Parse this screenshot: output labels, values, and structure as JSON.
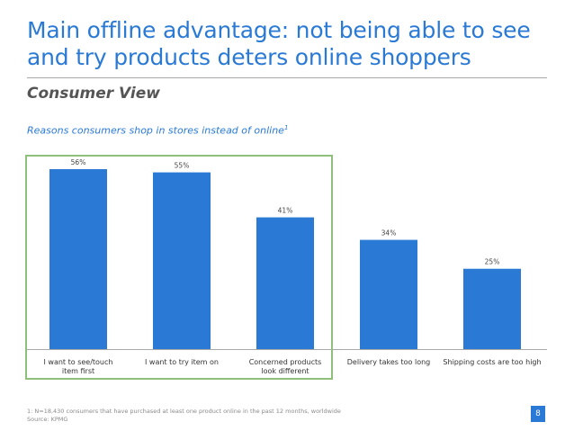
{
  "slide": {
    "title": "Main offline advantage: not being able to see and try products deters online shoppers",
    "subtitle": "Consumer View",
    "chart_caption": "Reasons consumers shop in stores instead of online",
    "chart_caption_sup": "1",
    "footnote_line1": "1: N=18,430 consumers that have purchased at least one product online in the past 12 months, worldwide",
    "footnote_line2": "Source: KPMG",
    "page_number": "8",
    "colors": {
      "accent": "#2a7ad5",
      "bar": "#2a7ad5",
      "highlight": "#8ec07c",
      "axis": "#a9a9a9"
    }
  },
  "chart_data": {
    "type": "bar",
    "title": "Reasons consumers shop in stores instead of online",
    "categories": [
      "I want to see/touch item first",
      "I want to try item on",
      "Concerned products look different",
      "Delivery takes too long",
      "Shipping costs are too high"
    ],
    "category_lines": [
      [
        "I want to see/touch",
        "item first"
      ],
      [
        "I want to try item on"
      ],
      [
        "Concerned products",
        "look different"
      ],
      [
        "Delivery takes too long"
      ],
      [
        "Shipping costs are too high"
      ]
    ],
    "values": [
      56,
      55,
      41,
      34,
      25
    ],
    "data_labels": [
      "56%",
      "55%",
      "41%",
      "34%",
      "25%"
    ],
    "ylim": [
      0,
      56
    ],
    "grid": false,
    "legend": "none",
    "highlighted_categories": [
      0,
      1,
      2
    ]
  }
}
